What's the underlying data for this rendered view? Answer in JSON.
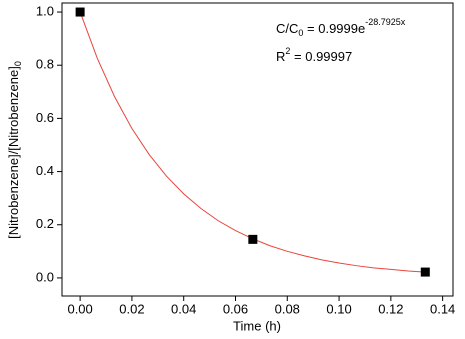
{
  "chart_data": {
    "type": "scatter",
    "xlabel": "Time (h)",
    "ylabel": {
      "text": "[Nitrobenzene]/[Nitrobenzene]",
      "sub": "0"
    },
    "equation": {
      "lhs": "C/C",
      "lhs_sub": "0",
      "rhs": " = 0.9999e",
      "exponent": "-28.7925x"
    },
    "r2": {
      "base": "R",
      "sup": "2",
      "rhs": " = 0.99997"
    },
    "xlim": [
      -0.007,
      0.144
    ],
    "ylim": [
      -0.068,
      1.034
    ],
    "xticks": [
      {
        "value": 0,
        "label": "0.00"
      },
      {
        "value": 0.02,
        "label": "0.02"
      },
      {
        "value": 0.04,
        "label": "0.04"
      },
      {
        "value": 0.06,
        "label": "0.06"
      },
      {
        "value": 0.08,
        "label": "0.08"
      },
      {
        "value": 0.1,
        "label": "0.10"
      },
      {
        "value": 0.12,
        "label": "0.12"
      },
      {
        "value": 0.14,
        "label": "0.14"
      }
    ],
    "yticks": [
      {
        "value": 0,
        "label": "0.0"
      },
      {
        "value": 0.2,
        "label": "0.2"
      },
      {
        "value": 0.4,
        "label": "0.4"
      },
      {
        "value": 0.6,
        "label": "0.6"
      },
      {
        "value": 0.8,
        "label": "0.8"
      },
      {
        "value": 1,
        "label": "1.0"
      }
    ],
    "series": [
      {
        "type": "scatter",
        "color": "#000000",
        "x": [
          0,
          0.0667,
          0.1333
        ],
        "values": [
          1.0,
          0.145,
          0.022
        ]
      },
      {
        "type": "line",
        "color": "#e8453c",
        "x": [
          0,
          0.00667,
          0.01333,
          0.02,
          0.02667,
          0.03333,
          0.04,
          0.04667,
          0.05333,
          0.06,
          0.06667,
          0.07333,
          0.08,
          0.08667,
          0.09333,
          0.1,
          0.10667,
          0.11333,
          0.12,
          0.12667,
          0.13333
        ],
        "values": [
          1.0,
          0.825,
          0.681,
          0.562,
          0.464,
          0.383,
          0.316,
          0.261,
          0.215,
          0.178,
          0.147,
          0.121,
          0.1,
          0.083,
          0.068,
          0.056,
          0.046,
          0.038,
          0.032,
          0.026,
          0.022
        ]
      }
    ]
  }
}
